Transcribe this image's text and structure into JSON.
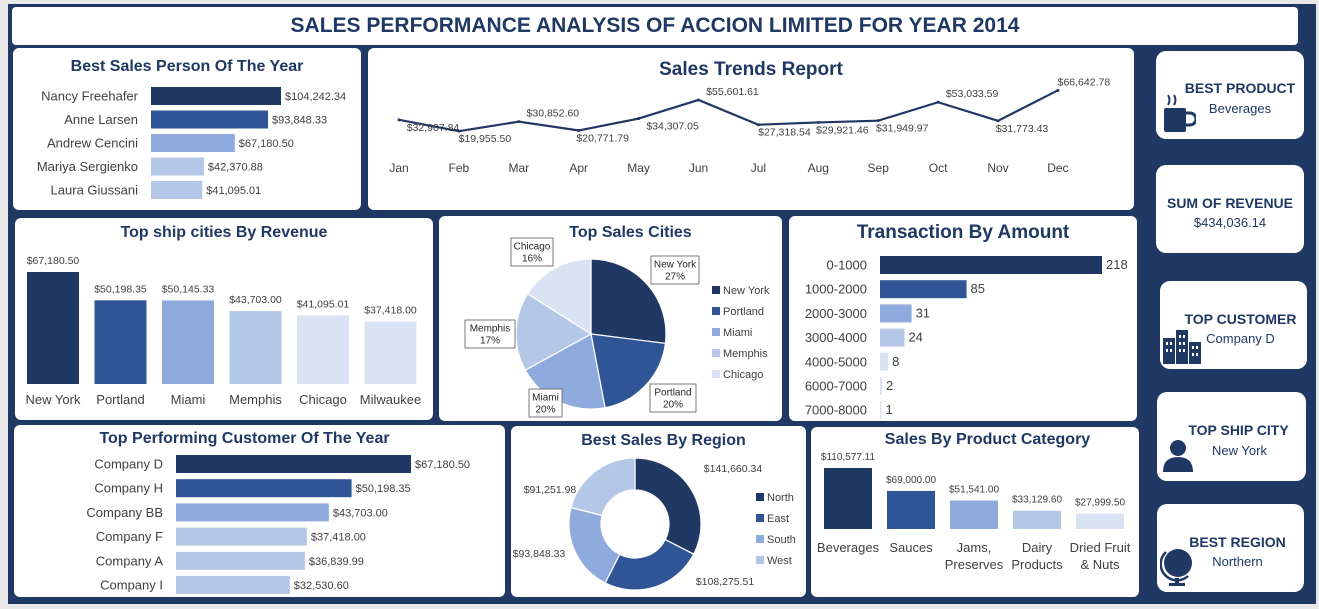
{
  "title": "SALES PERFORMANCE ANALYSIS OF ACCION LIMITED FOR YEAR 2014",
  "colors": {
    "navy": "#1f3864",
    "c1": "#2f5597",
    "c2": "#8faadc",
    "c3": "#b4c7e7",
    "c4": "#dae3f3"
  },
  "kpis": [
    {
      "title": "BEST PRODUCT",
      "value": "Beverages",
      "icon": "coffee-mug-icon"
    },
    {
      "title": "SUM OF REVENUE",
      "value": "$434,036.14",
      "icon": ""
    },
    {
      "title": "TOP CUSTOMER",
      "value": "Company D",
      "icon": "buildings-icon"
    },
    {
      "title": "TOP SHIP CITY",
      "value": "New York",
      "icon": "person-icon"
    },
    {
      "title": "BEST REGION",
      "value": "Northern",
      "icon": "globe-icon"
    }
  ],
  "chart_data": [
    {
      "id": "salesperson",
      "type": "bar",
      "orientation": "horizontal",
      "title": "Best Sales Person Of The Year",
      "categories": [
        "Nancy Freehafer",
        "Anne Larsen",
        "Andrew Cencini",
        "Mariya Sergienko",
        "Laura Giussani"
      ],
      "values": [
        104242.34,
        93848.33,
        67180.5,
        42370.88,
        41095.01
      ],
      "labels": [
        "$104,242.34",
        "$93,848.33",
        "$67,180.50",
        "$42,370.88",
        "$41,095.01"
      ]
    },
    {
      "id": "trend",
      "type": "line",
      "title": "Sales Trends Report",
      "categories": [
        "Jan",
        "Feb",
        "Mar",
        "Apr",
        "May",
        "Jun",
        "Jul",
        "Aug",
        "Sep",
        "Oct",
        "Nov",
        "Dec"
      ],
      "values": [
        32907.84,
        19955.5,
        30852.6,
        20771.79,
        34307.05,
        55601.61,
        27318.54,
        29921.46,
        31949.97,
        53033.59,
        31773.43,
        66642.78
      ],
      "labels": [
        "$32,907.84",
        "$19,955.50",
        "$30,852.60",
        "$20,771.79",
        "$34,307.05",
        "$55,601.61",
        "$27,318.54",
        "$29,921.46",
        "$31,949.97",
        "$53,033.59",
        "$31,773.43",
        "$66,642.78"
      ]
    },
    {
      "id": "shipcities",
      "type": "bar",
      "orientation": "vertical",
      "title": "Top ship cities By Revenue",
      "categories": [
        "New York",
        "Portland",
        "Miami",
        "Memphis",
        "Chicago",
        "Milwaukee"
      ],
      "values": [
        67180.5,
        50198.35,
        50145.33,
        43703.0,
        41095.01,
        37418.0
      ],
      "labels": [
        "$67,180.50",
        "$50,198.35",
        "$50,145.33",
        "$43,703.00",
        "$41,095.01",
        "$37,418.00"
      ]
    },
    {
      "id": "salescities",
      "type": "pie",
      "title": "Top Sales Cities",
      "categories": [
        "New York",
        "Portland",
        "Miami",
        "Memphis",
        "Chicago"
      ],
      "values": [
        27,
        20,
        20,
        17,
        16
      ],
      "labels": [
        "New York\n27%",
        "Portland\n20%",
        "Miami\n20%",
        "Memphis\n17%",
        "Chicago\n16%"
      ],
      "legend": "right"
    },
    {
      "id": "transactions",
      "type": "bar",
      "orientation": "horizontal",
      "title": "Transaction By Amount",
      "categories": [
        "0-1000",
        "1000-2000",
        "2000-3000",
        "3000-4000",
        "4000-5000",
        "6000-7000",
        "7000-8000"
      ],
      "values": [
        218,
        85,
        31,
        24,
        8,
        2,
        1
      ],
      "labels": [
        "218",
        "85",
        "31",
        "24",
        "8",
        "2",
        "1"
      ]
    },
    {
      "id": "customers",
      "type": "bar",
      "orientation": "horizontal",
      "title": "Top  Performing Customer Of The Year",
      "categories": [
        "Company D",
        "Company H",
        "Company BB",
        "Company F",
        "Company A",
        "Company I"
      ],
      "values": [
        67180.5,
        50198.35,
        43703.0,
        37418.0,
        36839.99,
        32530.6
      ],
      "labels": [
        "$67,180.50",
        "$50,198.35",
        "$43,703.00",
        "$37,418.00",
        "$36,839.99",
        "$32,530.60"
      ]
    },
    {
      "id": "region",
      "type": "pie",
      "donut": true,
      "title": "Best Sales By  Region",
      "categories": [
        "North",
        "East",
        "South",
        "West"
      ],
      "values": [
        141660.34,
        108275.51,
        93848.33,
        91251.98
      ],
      "labels": [
        "$141,660.34",
        "$108,275.51",
        "$93,848.33",
        "$91,251.98"
      ],
      "legend": "right"
    },
    {
      "id": "category",
      "type": "bar",
      "orientation": "vertical",
      "title": "Sales By Product Category",
      "categories": [
        "Beverages",
        "Sauces",
        "Jams,\nPreserves",
        "Dairy\nProducts",
        "Dried Fruit\n& Nuts"
      ],
      "values": [
        110577.11,
        69000.0,
        51541.0,
        33129.6,
        27999.5
      ],
      "labels": [
        "$110,577.11",
        "$69,000.00",
        "$51,541.00",
        "$33,129.60",
        "$27,999.50"
      ]
    }
  ]
}
